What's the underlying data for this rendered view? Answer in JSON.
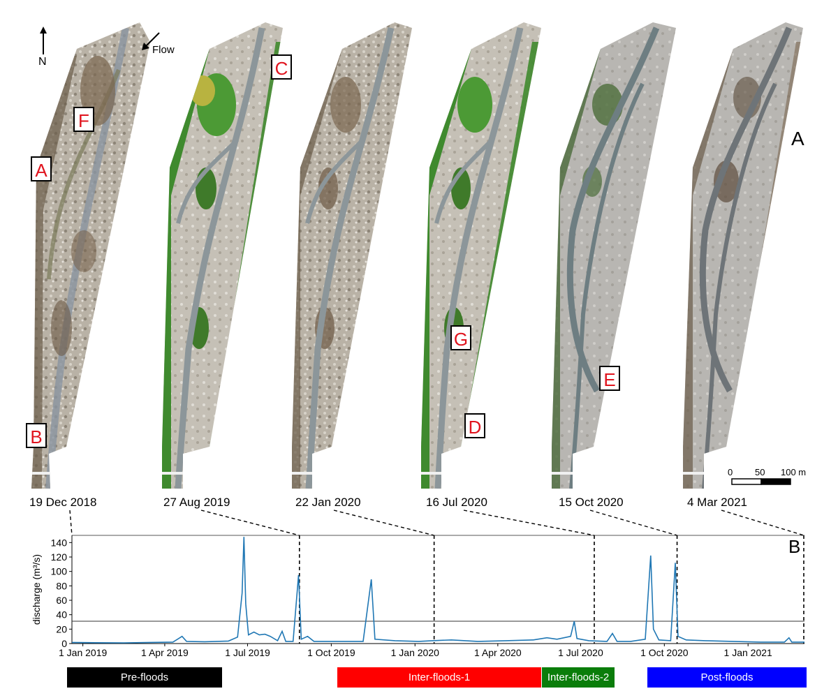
{
  "panel_a": {
    "letter": "A",
    "north_label": "N",
    "flow_label": "Flow",
    "scale_bar": {
      "labels": [
        "0",
        "50",
        "100 m"
      ]
    },
    "images": [
      {
        "date": "19 Dec 2018",
        "theme": "gravel"
      },
      {
        "date": "27 Aug 2019",
        "theme": "green"
      },
      {
        "date": "22 Jan 2020",
        "theme": "gravel"
      },
      {
        "date": "16 Jul 2020",
        "theme": "green"
      },
      {
        "date": "15 Oct 2020",
        "theme": "pale"
      },
      {
        "date": "4 Mar 2021",
        "theme": "pale"
      }
    ],
    "markers": [
      "A",
      "B",
      "C",
      "D",
      "E",
      "F",
      "G"
    ]
  },
  "panel_b": {
    "letter": "B",
    "chart_data": {
      "type": "line",
      "xlabel": "",
      "ylabel": "discharge (m³/s)",
      "x_tick_labels": [
        "1 Jan 2019",
        "1 Apr 2019",
        "1 Jul 2019",
        "1 Oct 2019",
        "1 Jan 2020",
        "1 Apr 2020",
        "1 Jul 2020",
        "1 Oct 2020",
        "1 Jan 2021"
      ],
      "y_ticks": [
        0,
        20,
        40,
        60,
        80,
        100,
        120,
        140
      ],
      "ylim": [
        0,
        150
      ],
      "xlim": [
        "2018-12-20",
        "2021-03-04"
      ],
      "threshold_line": 31,
      "survey_dates": [
        "2019-08-27",
        "2020-01-22",
        "2020-07-16",
        "2020-10-15",
        "2021-03-04"
      ],
      "series": [
        {
          "color": "#1f77b4",
          "points": [
            [
              "2018-12-20",
              1.5
            ],
            [
              "2019-01-15",
              1.2
            ],
            [
              "2019-02-15",
              1.0
            ],
            [
              "2019-03-15",
              1.5
            ],
            [
              "2019-04-10",
              2.0
            ],
            [
              "2019-04-20",
              10
            ],
            [
              "2019-04-25",
              3
            ],
            [
              "2019-05-15",
              2.5
            ],
            [
              "2019-06-10",
              3.5
            ],
            [
              "2019-06-20",
              9
            ],
            [
              "2019-06-25",
              70
            ],
            [
              "2019-06-27",
              148
            ],
            [
              "2019-06-29",
              55
            ],
            [
              "2019-07-02",
              12
            ],
            [
              "2019-07-08",
              16
            ],
            [
              "2019-07-14",
              12
            ],
            [
              "2019-07-20",
              13
            ],
            [
              "2019-07-26",
              10
            ],
            [
              "2019-08-03",
              4
            ],
            [
              "2019-08-08",
              17
            ],
            [
              "2019-08-12",
              3
            ],
            [
              "2019-08-20",
              3
            ],
            [
              "2019-08-26",
              95
            ],
            [
              "2019-08-29",
              6
            ],
            [
              "2019-09-05",
              10
            ],
            [
              "2019-09-12",
              3
            ],
            [
              "2019-10-10",
              3
            ],
            [
              "2019-11-05",
              3
            ],
            [
              "2019-11-14",
              89
            ],
            [
              "2019-11-18",
              6
            ],
            [
              "2019-12-10",
              4
            ],
            [
              "2020-01-05",
              3
            ],
            [
              "2020-01-20",
              4
            ],
            [
              "2020-02-10",
              5
            ],
            [
              "2020-03-10",
              3
            ],
            [
              "2020-04-10",
              4
            ],
            [
              "2020-05-10",
              5
            ],
            [
              "2020-05-25",
              8
            ],
            [
              "2020-06-05",
              6
            ],
            [
              "2020-06-20",
              10
            ],
            [
              "2020-06-24",
              31
            ],
            [
              "2020-06-27",
              7
            ],
            [
              "2020-07-10",
              4
            ],
            [
              "2020-07-30",
              3
            ],
            [
              "2020-08-05",
              14
            ],
            [
              "2020-08-10",
              3
            ],
            [
              "2020-08-25",
              3
            ],
            [
              "2020-09-10",
              6
            ],
            [
              "2020-09-16",
              122
            ],
            [
              "2020-09-19",
              20
            ],
            [
              "2020-09-25",
              5
            ],
            [
              "2020-10-08",
              4
            ],
            [
              "2020-10-13",
              112
            ],
            [
              "2020-10-16",
              10
            ],
            [
              "2020-10-25",
              5
            ],
            [
              "2020-11-15",
              4
            ],
            [
              "2020-12-15",
              3
            ],
            [
              "2021-01-15",
              2
            ],
            [
              "2021-02-10",
              2
            ],
            [
              "2021-02-15",
              8
            ],
            [
              "2021-02-18",
              2
            ],
            [
              "2021-03-04",
              2
            ]
          ]
        }
      ]
    },
    "periods": [
      {
        "label": "Pre-floods",
        "color": "#000000"
      },
      {
        "label": "Inter-floods-1",
        "color": "#ff0000"
      },
      {
        "label": "Inter-floods-2",
        "color": "#0a7d0a"
      },
      {
        "label": "Post-floods",
        "color": "#0000ff"
      }
    ]
  }
}
